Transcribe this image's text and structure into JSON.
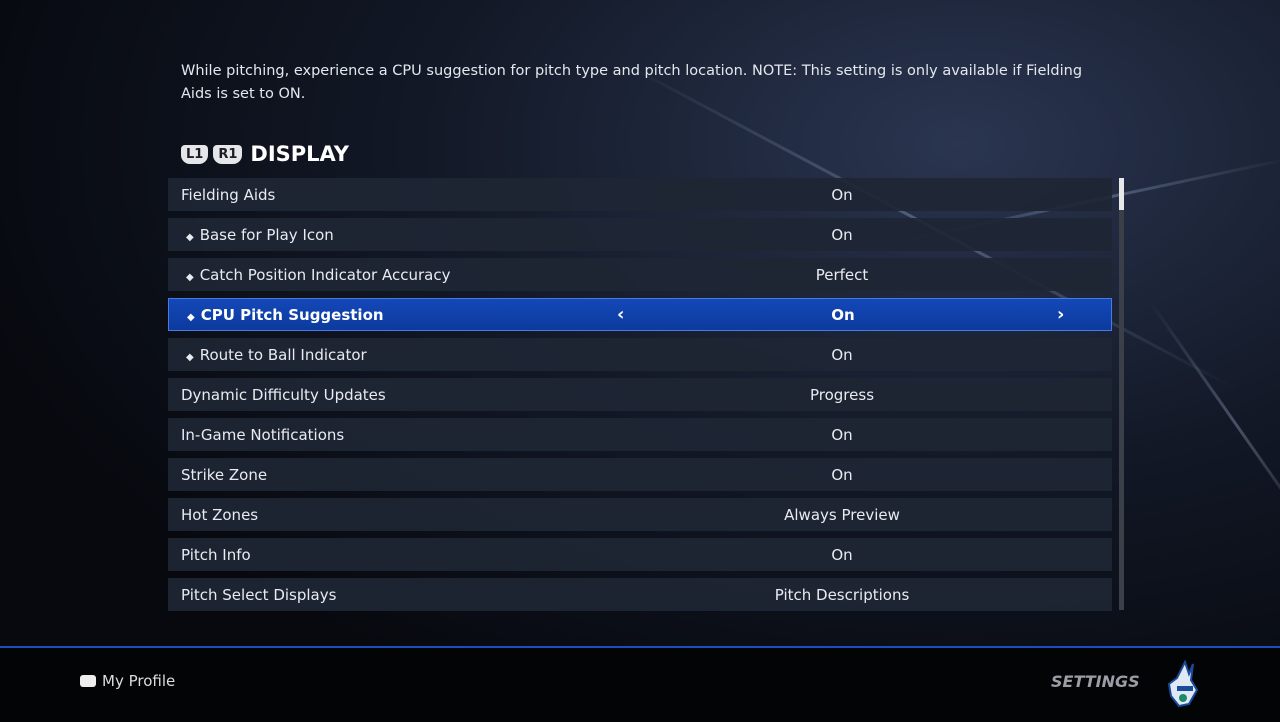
{
  "description": "While pitching, experience a CPU suggestion for pitch type and pitch location. NOTE: This setting is only available if Fielding Aids is set to ON.",
  "section": {
    "bumper_left": "L1",
    "bumper_right": "R1",
    "title": "DISPLAY"
  },
  "rows": [
    {
      "label": "Fielding Aids",
      "value": "On",
      "sub": false
    },
    {
      "label": "Base for Play Icon",
      "value": "On",
      "sub": true
    },
    {
      "label": "Catch Position Indicator Accuracy",
      "value": "Perfect",
      "sub": true
    },
    {
      "label": "CPU Pitch Suggestion",
      "value": "On",
      "sub": true,
      "selected": true
    },
    {
      "label": "Route to Ball Indicator",
      "value": "On",
      "sub": true
    },
    {
      "label": "Dynamic Difficulty Updates",
      "value": "Progress",
      "sub": false
    },
    {
      "label": "In-Game Notifications",
      "value": "On",
      "sub": false
    },
    {
      "label": "Strike Zone",
      "value": "On",
      "sub": false
    },
    {
      "label": "Hot Zones",
      "value": "Always Preview",
      "sub": false
    },
    {
      "label": "Pitch Info",
      "value": "On",
      "sub": false
    },
    {
      "label": "Pitch Select Displays",
      "value": "Pitch Descriptions",
      "sub": false
    }
  ],
  "footer": {
    "profile": "My Profile",
    "screen": "SETTINGS"
  },
  "colors": {
    "selected": "#1448b8",
    "accent": "#1c4ec0"
  }
}
